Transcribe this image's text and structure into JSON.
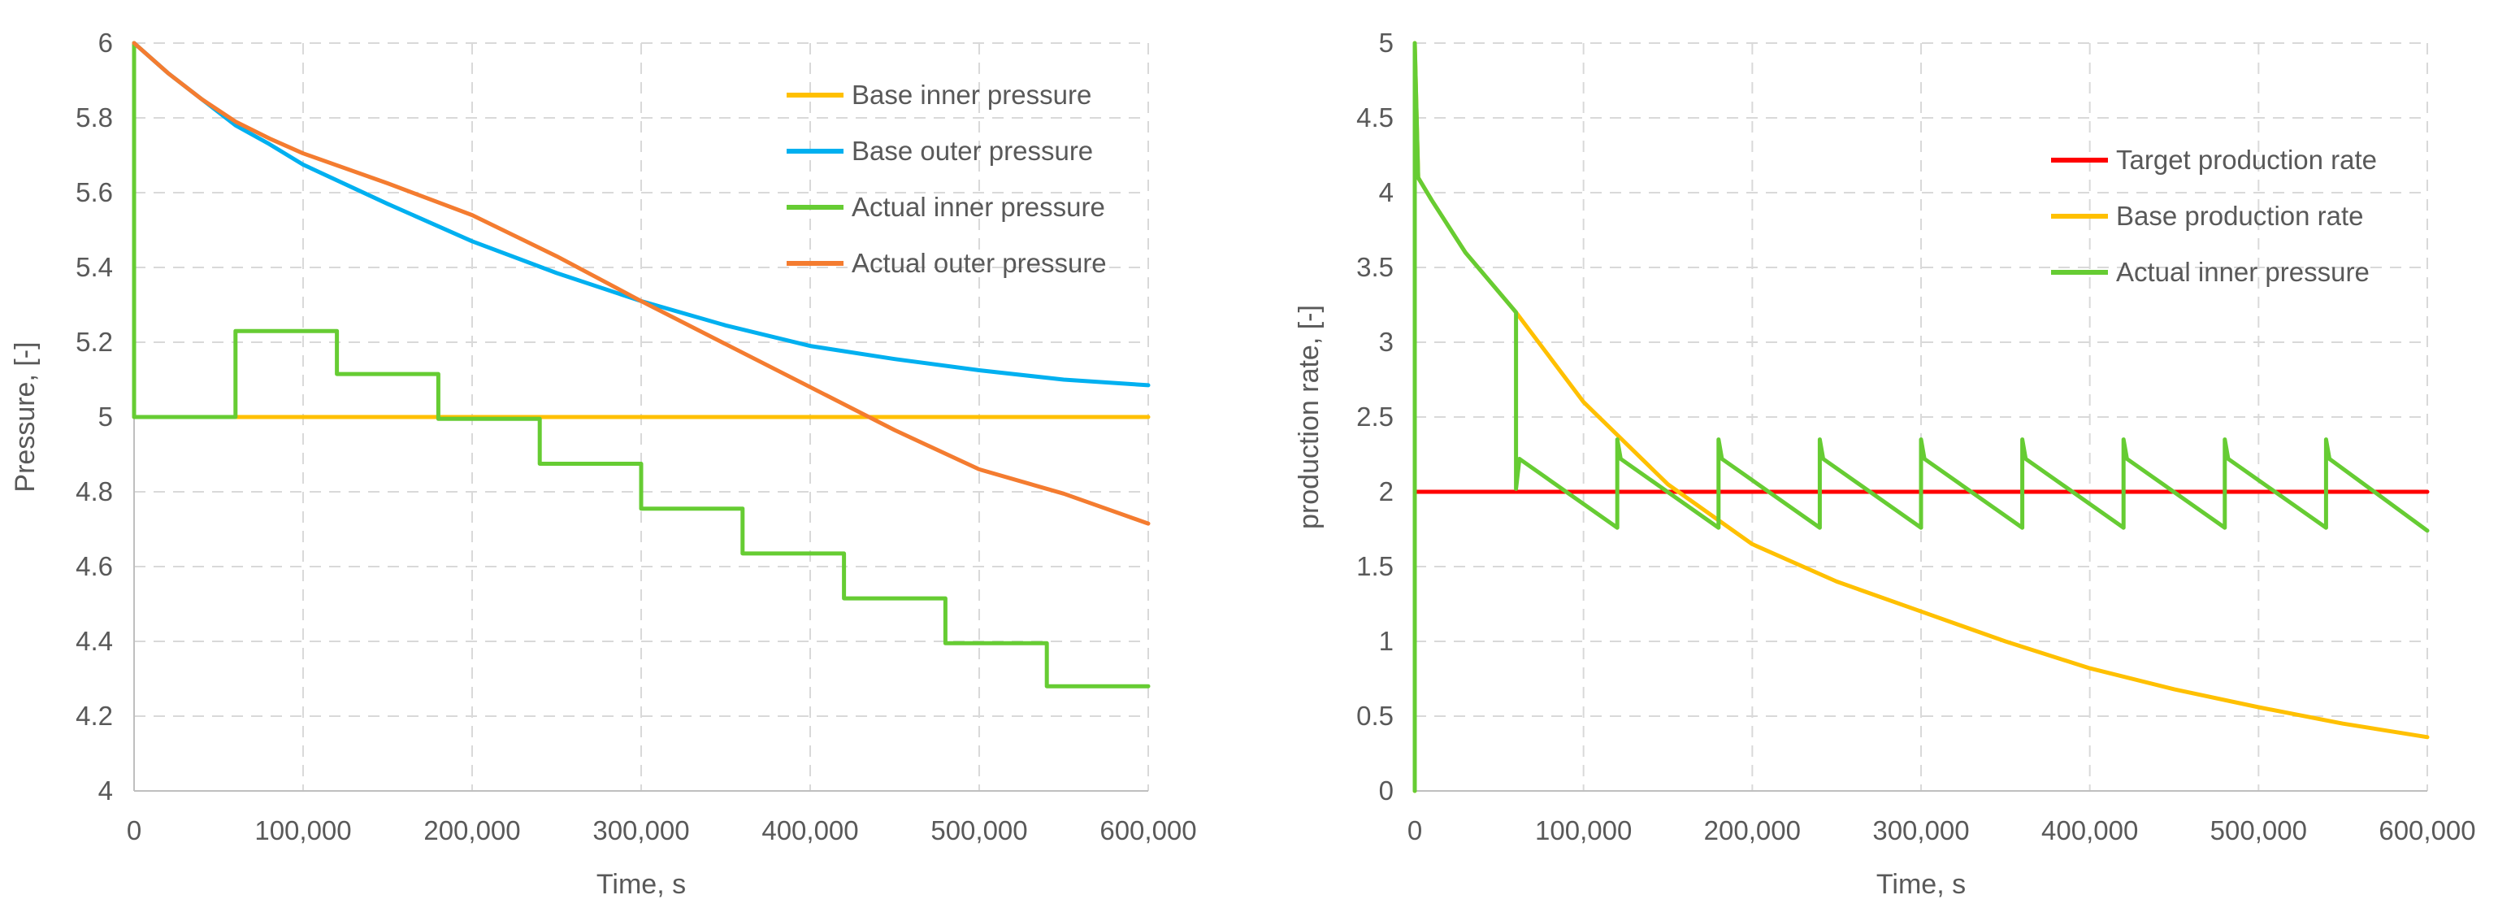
{
  "chart_data": [
    {
      "type": "line",
      "title": "",
      "xlabel": "Time, s",
      "ylabel": "Pressure, [-]",
      "xlim": [
        0,
        600000
      ],
      "ylim": [
        4,
        6
      ],
      "xticks": [
        0,
        100000,
        200000,
        300000,
        400000,
        500000,
        600000
      ],
      "xtick_labels": [
        "0",
        "100,000",
        "200,000",
        "300,000",
        "400,000",
        "500,000",
        "600,000"
      ],
      "yticks": [
        4,
        4.2,
        4.4,
        4.6,
        4.8,
        5,
        5.2,
        5.4,
        5.6,
        5.8,
        6
      ],
      "ytick_labels": [
        "4",
        "4.2",
        "4.4",
        "4.6",
        "4.8",
        "5",
        "5.2",
        "5.4",
        "5.6",
        "5.8",
        "6"
      ],
      "grid": true,
      "legend_position": "top-right",
      "series": [
        {
          "name": "Base inner pressure",
          "color": "#FFC000",
          "x": [
            0,
            0,
            600000
          ],
          "y": [
            6,
            5,
            5
          ]
        },
        {
          "name": "Base outer pressure",
          "color": "#00B0F0",
          "x": [
            0,
            20000,
            40000,
            60000,
            80000,
            100000,
            150000,
            200000,
            250000,
            300000,
            350000,
            400000,
            450000,
            500000,
            550000,
            600000
          ],
          "y": [
            6,
            5.92,
            5.85,
            5.78,
            5.73,
            5.675,
            5.57,
            5.47,
            5.385,
            5.31,
            5.245,
            5.19,
            5.155,
            5.125,
            5.1,
            5.085
          ]
        },
        {
          "name": "Actual inner pressure",
          "color": "#66CC33",
          "x": [
            0,
            0,
            60000,
            60000,
            120000,
            120000,
            180000,
            180000,
            240000,
            240000,
            300000,
            300000,
            360000,
            360000,
            420000,
            420000,
            480000,
            480000,
            540000,
            540000,
            600000
          ],
          "y": [
            6,
            5,
            5,
            5.23,
            5.23,
            5.115,
            5.115,
            4.995,
            4.995,
            4.875,
            4.875,
            4.755,
            4.755,
            4.635,
            4.635,
            4.515,
            4.515,
            4.395,
            4.395,
            4.28,
            4.28
          ]
        },
        {
          "name": "Actual outer pressure",
          "color": "#F47C30",
          "x": [
            0,
            20000,
            40000,
            60000,
            80000,
            100000,
            150000,
            200000,
            250000,
            300000,
            350000,
            400000,
            450000,
            500000,
            550000,
            600000
          ],
          "y": [
            6,
            5.92,
            5.85,
            5.79,
            5.745,
            5.705,
            5.625,
            5.54,
            5.43,
            5.31,
            5.195,
            5.08,
            4.965,
            4.86,
            4.795,
            4.715
          ]
        }
      ]
    },
    {
      "type": "line",
      "title": "",
      "xlabel": "Time, s",
      "ylabel": "production rate, [-]",
      "xlim": [
        0,
        600000
      ],
      "ylim": [
        0,
        5
      ],
      "xticks": [
        0,
        100000,
        200000,
        300000,
        400000,
        500000,
        600000
      ],
      "xtick_labels": [
        "0",
        "100,000",
        "200,000",
        "300,000",
        "400,000",
        "500,000",
        "600,000"
      ],
      "yticks": [
        0,
        0.5,
        1,
        1.5,
        2,
        2.5,
        3,
        3.5,
        4,
        4.5,
        5
      ],
      "ytick_labels": [
        "0",
        "0.5",
        "1",
        "1.5",
        "2",
        "2.5",
        "3",
        "3.5",
        "4",
        "4.5",
        "5"
      ],
      "grid": true,
      "legend_position": "top-right",
      "series": [
        {
          "name": "Target production rate",
          "color": "#FF0000",
          "x": [
            0,
            600000
          ],
          "y": [
            2,
            2
          ]
        },
        {
          "name": "Base production rate",
          "color": "#FFC000",
          "x": [
            0,
            0,
            2000,
            10000,
            30000,
            60000,
            100000,
            150000,
            200000,
            250000,
            300000,
            350000,
            400000,
            450000,
            500000,
            550000,
            600000
          ],
          "y": [
            0,
            5,
            4.1,
            3.95,
            3.6,
            3.2,
            2.6,
            2.05,
            1.65,
            1.4,
            1.2,
            1.0,
            0.82,
            0.68,
            0.56,
            0.45,
            0.36
          ]
        },
        {
          "name": "Actual inner pressure",
          "color": "#66CC33",
          "x": [
            0,
            0,
            2000,
            10000,
            30000,
            60000,
            60000,
            62000,
            120000,
            120000,
            122000,
            180000,
            180000,
            182000,
            240000,
            240000,
            242000,
            300000,
            300000,
            302000,
            360000,
            360000,
            362000,
            420000,
            420000,
            422000,
            480000,
            480000,
            482000,
            540000,
            540000,
            542000,
            600000
          ],
          "y": [
            0,
            5,
            4.1,
            3.95,
            3.6,
            3.2,
            2.02,
            2.22,
            1.76,
            2.35,
            2.22,
            1.76,
            2.35,
            2.22,
            1.76,
            2.35,
            2.22,
            1.76,
            2.35,
            2.22,
            1.76,
            2.35,
            2.22,
            1.76,
            2.35,
            2.22,
            1.76,
            2.35,
            2.22,
            1.76,
            2.35,
            2.22,
            1.74
          ]
        }
      ]
    }
  ]
}
